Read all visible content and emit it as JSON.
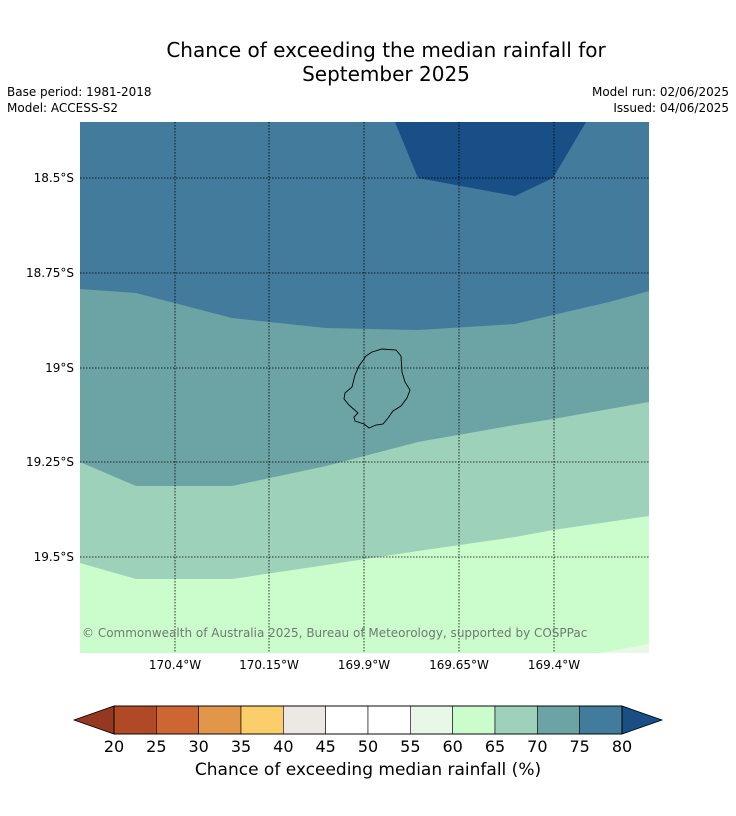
{
  "title": {
    "line1": "Chance of exceeding the median rainfall for",
    "line2": "September 2025"
  },
  "meta": {
    "base_period": "Base period: 1981-2018",
    "model": "Model: ACCESS-S2",
    "model_run": "Model run: 02/06/2025",
    "issued": "Issued: 04/06/2025"
  },
  "map": {
    "lat_labels": [
      "18.5°S",
      "18.75°S",
      "19°S",
      "19.25°S",
      "19.5°S"
    ],
    "lon_labels": [
      "170.4°W",
      "170.15°W",
      "169.9°W",
      "169.65°W",
      "169.4°W"
    ],
    "copyright": "© Commonwealth of Australia 2025, Bureau of Meteorology, supported by COSPPac",
    "colors": {
      "band_80_plus": "#174f86",
      "band_75_80": "#427b9b",
      "band_70_75": "#6ca3a5",
      "band_65_70": "#9dd1ba",
      "band_60_65": "#cbfccb",
      "band_55_60": "#e9f7e9",
      "coast": "#000000"
    }
  },
  "colorbar": {
    "ticks": [
      "20",
      "25",
      "30",
      "35",
      "40",
      "45",
      "50",
      "55",
      "60",
      "65",
      "70",
      "75",
      "80"
    ],
    "colors": [
      "#b04a26",
      "#cd6633",
      "#e1964a",
      "#fcce6b",
      "#ece8e3",
      "#ffffff",
      "#ffffff",
      "#e9f7e9",
      "#cbfccb",
      "#9dd1ba",
      "#6ca3a5",
      "#427b9b"
    ],
    "low_extend_color": "#953721",
    "high_extend_color": "#174f86",
    "label": "Chance of exceeding median rainfall (%)"
  }
}
